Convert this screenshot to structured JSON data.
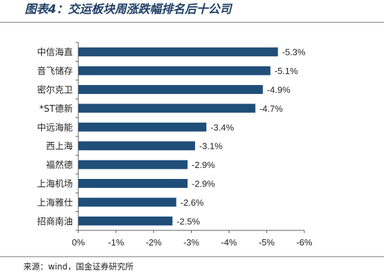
{
  "figure": {
    "title": "图表4：交运板块周涨跌幅排名后十公司",
    "source": "来源：wind，国金证券研究所"
  },
  "chart_data": {
    "type": "bar",
    "orientation": "horizontal",
    "bar_color": "#1f4e79",
    "categories": [
      "中信海直",
      "音飞储存",
      "密尔克卫",
      "*ST德新",
      "中远海能",
      "西上海",
      "福然德",
      "上海机场",
      "上海雅仕",
      "招商南油"
    ],
    "values": [
      -5.3,
      -5.1,
      -4.9,
      -4.7,
      -3.4,
      -3.1,
      -2.9,
      -2.9,
      -2.6,
      -2.5
    ],
    "data_labels": [
      "-5.3%",
      "-5.1%",
      "-4.9%",
      "-4.7%",
      "-3.4%",
      "-3.1%",
      "-2.9%",
      "-2.9%",
      "-2.6%",
      "-2.5%"
    ],
    "ticks": [
      0,
      -1,
      -2,
      -3,
      -4,
      -5,
      -6
    ],
    "tick_labels": [
      "0%",
      "-1%",
      "-2%",
      "-3%",
      "-4%",
      "-5%",
      "-6%"
    ],
    "xlim": [
      0,
      -6
    ],
    "title": "",
    "xlabel": "",
    "ylabel": "",
    "grid": false,
    "legend": "none"
  }
}
